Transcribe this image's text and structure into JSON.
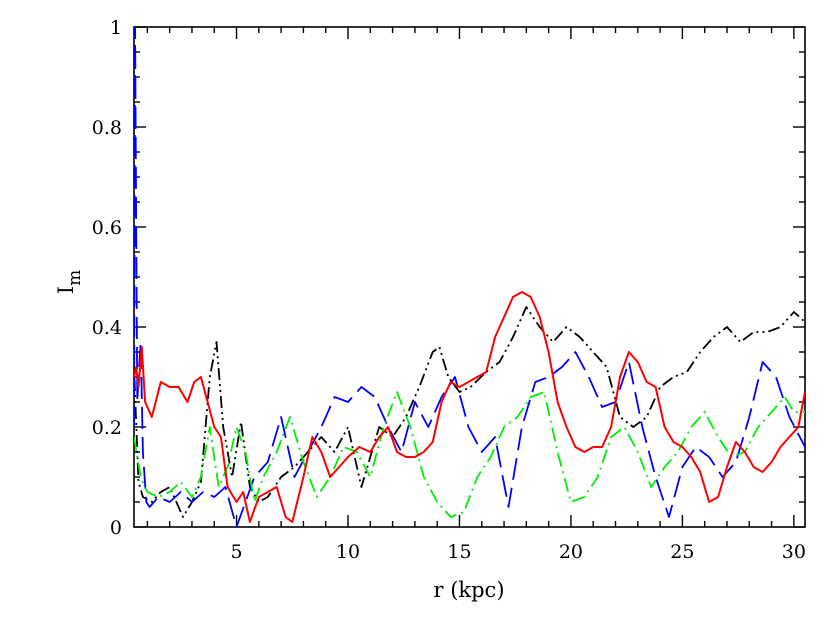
{
  "chart_data": {
    "type": "line",
    "xlabel": "r (kpc)",
    "ylabel": {
      "main": "I",
      "subscript": "m"
    },
    "xlim": [
      0.4,
      30.5
    ],
    "ylim": [
      0,
      1
    ],
    "x_ticks": [
      5,
      10,
      15,
      20,
      25,
      30
    ],
    "y_ticks": [
      0,
      0.2,
      0.4,
      0.6,
      0.8,
      1
    ],
    "y_tick_labels": [
      "0",
      "0.2",
      "0.4",
      "0.6",
      "0.8",
      "1"
    ],
    "grid": false,
    "series": [
      {
        "color": "#000000",
        "dash": "dotted-dash",
        "x": [
          0.4,
          0.6,
          0.8,
          1.2,
          1.6,
          2.0,
          2.6,
          3.0,
          3.4,
          3.8,
          4.1,
          4.4,
          4.8,
          5.2,
          5.6,
          6.0,
          6.4,
          7.0,
          7.6,
          8.2,
          8.8,
          9.4,
          10.0,
          10.6,
          11.0,
          11.4,
          12.0,
          12.6,
          13.2,
          13.8,
          14.1,
          14.5,
          15.0,
          15.5,
          16.2,
          16.8,
          17.4,
          18.0,
          18.6,
          19.2,
          19.8,
          20.4,
          21.0,
          21.6,
          22.2,
          22.8,
          23.4,
          24.0,
          24.6,
          25.2,
          25.8,
          26.4,
          27.0,
          27.6,
          28.2,
          28.8,
          29.4,
          30.0,
          30.5
        ],
        "values": [
          0.32,
          0.09,
          0.06,
          0.05,
          0.07,
          0.08,
          0.02,
          0.05,
          0.09,
          0.3,
          0.37,
          0.2,
          0.1,
          0.21,
          0.08,
          0.05,
          0.06,
          0.1,
          0.12,
          0.15,
          0.18,
          0.15,
          0.2,
          0.08,
          0.14,
          0.2,
          0.18,
          0.22,
          0.28,
          0.35,
          0.36,
          0.3,
          0.27,
          0.28,
          0.31,
          0.33,
          0.38,
          0.44,
          0.4,
          0.37,
          0.4,
          0.38,
          0.35,
          0.32,
          0.22,
          0.2,
          0.22,
          0.28,
          0.3,
          0.31,
          0.35,
          0.38,
          0.4,
          0.37,
          0.39,
          0.39,
          0.4,
          0.43,
          0.41
        ]
      },
      {
        "color": "#0000ff",
        "dash": "long-dash",
        "x": [
          0.4,
          0.45,
          0.5,
          0.55,
          0.6,
          0.7,
          0.8,
          0.95,
          1.1,
          1.5,
          2.0,
          2.5,
          3.0,
          3.5,
          4.0,
          4.5,
          5.0,
          5.4,
          5.8,
          6.4,
          7.0,
          7.6,
          8.2,
          8.8,
          9.4,
          10.0,
          10.6,
          11.2,
          11.8,
          12.4,
          13.0,
          13.6,
          14.2,
          14.8,
          15.4,
          16.0,
          16.6,
          17.2,
          17.8,
          18.4,
          19.0,
          19.6,
          20.2,
          20.8,
          21.4,
          22.0,
          22.6,
          23.2,
          23.8,
          24.4,
          25.0,
          25.6,
          26.2,
          26.8,
          27.4,
          28.0,
          28.6,
          29.2,
          29.8,
          30.5
        ],
        "values": [
          0.2,
          1.0,
          0.6,
          0.25,
          0.3,
          0.37,
          0.15,
          0.05,
          0.04,
          0.06,
          0.05,
          0.07,
          0.05,
          0.07,
          0.06,
          0.08,
          0.0,
          0.05,
          0.1,
          0.13,
          0.22,
          0.1,
          0.15,
          0.2,
          0.26,
          0.25,
          0.28,
          0.26,
          0.2,
          0.15,
          0.25,
          0.2,
          0.26,
          0.3,
          0.2,
          0.15,
          0.18,
          0.04,
          0.2,
          0.29,
          0.3,
          0.32,
          0.35,
          0.3,
          0.24,
          0.25,
          0.33,
          0.2,
          0.1,
          0.02,
          0.12,
          0.16,
          0.14,
          0.1,
          0.13,
          0.22,
          0.33,
          0.3,
          0.22,
          0.16
        ]
      },
      {
        "color": "#00ee00",
        "dash": "dash-dot",
        "x": [
          0.4,
          0.7,
          1.0,
          1.5,
          2.0,
          2.5,
          3.0,
          3.4,
          3.8,
          4.2,
          4.6,
          5.0,
          5.4,
          5.8,
          6.2,
          6.8,
          7.4,
          8.0,
          8.6,
          9.2,
          9.8,
          10.4,
          11.0,
          11.6,
          12.2,
          12.8,
          13.4,
          14.0,
          14.6,
          15.2,
          15.8,
          16.4,
          17.0,
          17.6,
          18.2,
          18.8,
          19.4,
          20.0,
          20.6,
          21.2,
          21.8,
          22.4,
          23.0,
          23.6,
          24.2,
          24.8,
          25.4,
          26.0,
          26.6,
          27.2,
          27.8,
          28.4,
          29.0,
          29.6,
          30.0,
          30.5
        ],
        "values": [
          0.18,
          0.1,
          0.07,
          0.06,
          0.07,
          0.09,
          0.06,
          0.1,
          0.2,
          0.08,
          0.12,
          0.2,
          0.15,
          0.05,
          0.1,
          0.15,
          0.22,
          0.13,
          0.06,
          0.1,
          0.16,
          0.15,
          0.1,
          0.2,
          0.27,
          0.2,
          0.1,
          0.05,
          0.02,
          0.03,
          0.1,
          0.14,
          0.2,
          0.22,
          0.26,
          0.27,
          0.15,
          0.05,
          0.06,
          0.1,
          0.18,
          0.2,
          0.15,
          0.08,
          0.12,
          0.15,
          0.2,
          0.23,
          0.18,
          0.14,
          0.15,
          0.2,
          0.23,
          0.26,
          0.23,
          0.23
        ]
      },
      {
        "color": "#ff0000",
        "dash": "solid",
        "x": [
          0.4,
          0.5,
          0.6,
          0.75,
          0.9,
          1.2,
          1.6,
          2.0,
          2.4,
          2.8,
          3.1,
          3.4,
          3.7,
          4.0,
          4.3,
          4.6,
          5.0,
          5.3,
          5.6,
          6.0,
          6.4,
          6.8,
          7.2,
          7.5,
          8.0,
          8.4,
          8.8,
          9.2,
          9.6,
          10.0,
          10.5,
          11.0,
          11.4,
          11.8,
          12.2,
          12.6,
          13.0,
          13.4,
          13.8,
          14.2,
          14.6,
          15.0,
          15.4,
          15.8,
          16.2,
          16.6,
          17.0,
          17.4,
          17.8,
          18.2,
          18.6,
          19.0,
          19.4,
          19.8,
          20.2,
          20.6,
          21.0,
          21.4,
          21.8,
          22.2,
          22.6,
          23.0,
          23.4,
          23.8,
          24.2,
          24.6,
          25.0,
          25.4,
          25.8,
          26.2,
          26.6,
          27.0,
          27.4,
          27.8,
          28.2,
          28.6,
          29.0,
          29.4,
          29.8,
          30.2,
          30.5
        ],
        "values": [
          0.3,
          0.32,
          0.28,
          0.36,
          0.25,
          0.22,
          0.29,
          0.28,
          0.28,
          0.25,
          0.29,
          0.3,
          0.25,
          0.2,
          0.18,
          0.08,
          0.05,
          0.07,
          0.01,
          0.06,
          0.07,
          0.08,
          0.02,
          0.01,
          0.1,
          0.18,
          0.15,
          0.1,
          0.12,
          0.14,
          0.16,
          0.15,
          0.18,
          0.2,
          0.15,
          0.14,
          0.14,
          0.15,
          0.17,
          0.25,
          0.29,
          0.28,
          0.29,
          0.3,
          0.31,
          0.38,
          0.42,
          0.46,
          0.47,
          0.46,
          0.42,
          0.35,
          0.25,
          0.2,
          0.16,
          0.15,
          0.16,
          0.16,
          0.2,
          0.3,
          0.35,
          0.33,
          0.29,
          0.28,
          0.2,
          0.17,
          0.16,
          0.14,
          0.11,
          0.05,
          0.06,
          0.12,
          0.17,
          0.15,
          0.12,
          0.11,
          0.13,
          0.16,
          0.18,
          0.2,
          0.27
        ]
      }
    ]
  }
}
